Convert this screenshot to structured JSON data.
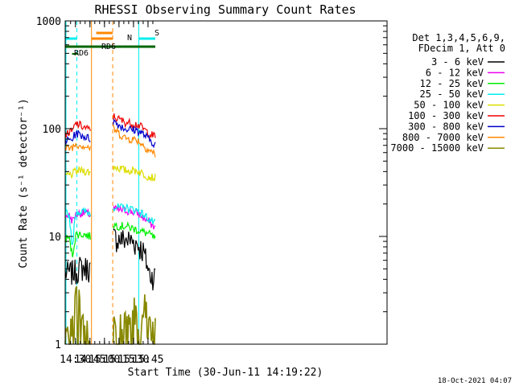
{
  "chart_data": {
    "type": "line",
    "title": "RHESSI Observing Summary Count Rates",
    "xlabel": "Start Time (30-Jun-11 14:19:22)",
    "ylabel": "Count Rate (s⁻¹ detector⁻¹)",
    "yscale": "log",
    "ylim": [
      1,
      1000
    ],
    "xlim_min": [
      859.4,
      1192
    ],
    "x_tick_labels": [
      "14:30",
      "14:45",
      "15:00",
      "15:15",
      "15:30",
      "15:45"
    ],
    "x_ticks_min": [
      870,
      885,
      900,
      915,
      930,
      945
    ],
    "y_tick_labels": [
      "1",
      "10",
      "100",
      "1000"
    ],
    "y_ticks": [
      1,
      10,
      100,
      1000
    ],
    "footer": "18-Oct-2021 04:07",
    "legend_header": [
      "Det 1,3,4,5,6,9,",
      "FDecim 1, Att 0"
    ],
    "data_gaps_min": [
      [
        886.6,
        880.0
      ],
      [
        886.6,
        908.5
      ]
    ],
    "segments_min": [
      [
        859.4,
        885.5
      ],
      [
        909.0,
        952.5
      ]
    ],
    "series": [
      {
        "name": "3 - 6 keV",
        "color": "#000000",
        "values_a": [
          4.6,
          4.6,
          4.7,
          4.8,
          5.2,
          5.1,
          5.2,
          5.0
        ],
        "values_b": [
          9.8,
          9.5,
          9.4,
          9.2,
          8.6,
          7.3,
          4.5,
          4.3
        ]
      },
      {
        "name": "6 - 12 keV",
        "color": "#ee00ee",
        "values_a": [
          15.5,
          15.8,
          14.0,
          16.0,
          16.5,
          16.5,
          16.3,
          16.0
        ],
        "values_b": [
          18.0,
          17.5,
          17.5,
          17.0,
          16.5,
          15.0,
          13.5,
          12.0
        ]
      },
      {
        "name": "12 - 25 keV",
        "color": "#00ee00",
        "values_a": [
          9.5,
          9.8,
          6.5,
          10.5,
          10.5,
          10.5,
          10.3,
          10.0
        ],
        "values_b": [
          13.0,
          12.5,
          12.5,
          12.0,
          11.5,
          11.0,
          10.5,
          9.5
        ]
      },
      {
        "name": "25 - 50 keV",
        "color": "#00eeee",
        "values_a": [
          16.5,
          16.5,
          7.5,
          17.0,
          17.0,
          17.0,
          16.8,
          16.5
        ],
        "values_b": [
          19.0,
          18.5,
          18.5,
          18.0,
          17.5,
          16.0,
          14.5,
          13.0
        ]
      },
      {
        "name": "50 - 100 keV",
        "color": "#dddd00",
        "values_a": [
          37,
          37,
          38,
          40,
          41,
          41,
          40,
          39
        ],
        "values_b": [
          45,
          43,
          41,
          41,
          41,
          38,
          36,
          35
        ]
      },
      {
        "name": "100 - 300 keV",
        "color": "#ee0000",
        "values_a": [
          90,
          92,
          94,
          112,
          108,
          104,
          100,
          96
        ],
        "values_b": [
          130,
          122,
          115,
          112,
          110,
          100,
          90,
          84
        ]
      },
      {
        "name": "300 - 800 keV",
        "color": "#0000cc",
        "values_a": [
          77,
          78,
          80,
          92,
          88,
          86,
          83,
          80
        ],
        "values_b": [
          118,
          108,
          100,
          98,
          97,
          89,
          79,
          72
        ]
      },
      {
        "name": "800 - 7000 keV",
        "color": "#ff8800",
        "values_a": [
          65,
          66,
          68,
          72,
          71,
          70,
          68,
          66
        ],
        "values_b": [
          100,
          90,
          82,
          80,
          79,
          70,
          63,
          58
        ]
      },
      {
        "name": "7000 - 15000 keV",
        "color": "#888800",
        "values_a": [
          1.3,
          1.3,
          1.3,
          2.5,
          2.5,
          1.3,
          1.3,
          1.3
        ],
        "values_b": [
          1.5,
          1.5,
          1.5,
          1.5,
          2.5,
          2.5,
          1.5,
          1.5
        ]
      }
    ],
    "annotations": [
      {
        "label": "N",
        "color": "#00eeee"
      },
      {
        "label": "S",
        "color": "#ff8800"
      },
      {
        "label": "RD6",
        "color": "#006600"
      },
      {
        "label": "RD6",
        "color": "#006600"
      }
    ],
    "intervals_min": [
      {
        "name": "night",
        "color": "#00eeee",
        "ranges": [
          [
            859.4,
            871.5
          ],
          [
            935.5,
            952.5
          ]
        ]
      },
      {
        "name": "saa",
        "color": "#ff8800",
        "ranges": [
          [
            886.6,
            908.5
          ]
        ]
      }
    ]
  }
}
